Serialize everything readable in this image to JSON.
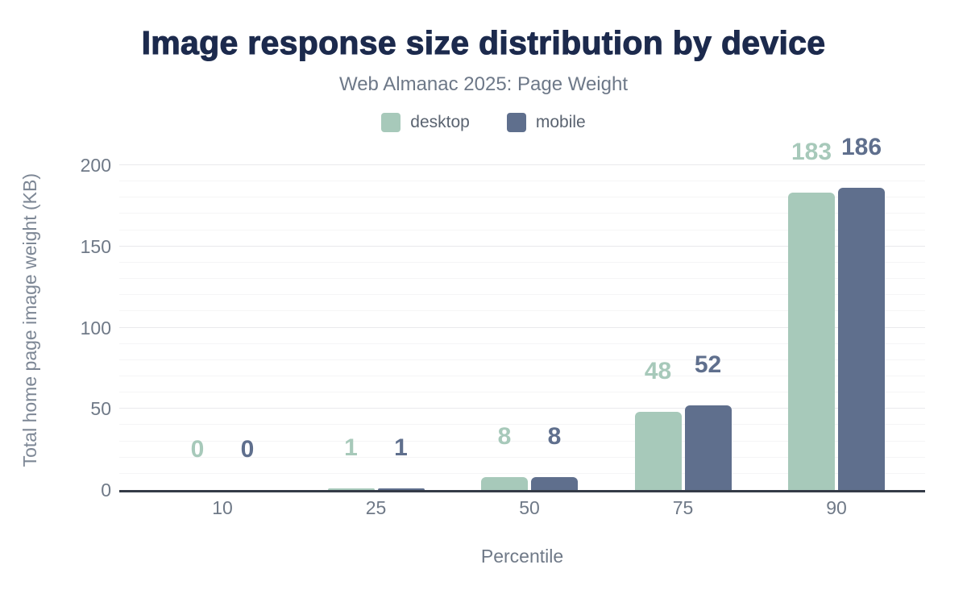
{
  "chart_data": {
    "type": "bar",
    "title": "Image response size distribution by device",
    "subtitle": "Web Almanac 2025: Page Weight",
    "categories": [
      "10",
      "25",
      "50",
      "75",
      "90"
    ],
    "series": [
      {
        "name": "desktop",
        "color": "#a7c9ba",
        "values": [
          0,
          1,
          8,
          48,
          183
        ]
      },
      {
        "name": "mobile",
        "color": "#5f6f8d",
        "values": [
          0,
          1,
          8,
          52,
          186
        ]
      }
    ],
    "xlabel": "Percentile",
    "ylabel": "Total home page image weight (KB)",
    "ylim": [
      0,
      200
    ],
    "yticks": [
      0,
      50,
      100,
      150,
      200
    ],
    "minor_tick_step": 10,
    "grid": true,
    "legend_position": "top",
    "value_labels": true
  },
  "colors": {
    "title_text": "#1c2a4d",
    "subtitle_text": "#6d7888",
    "legend_text": "#5a6370",
    "tick_text": "#6f7987",
    "axis_title_text": "#7d8795",
    "axis_line": "#343b47",
    "grid_major": "#e9e9ec",
    "grid_minor": "#f5f5f6",
    "background": "#ffffff"
  }
}
